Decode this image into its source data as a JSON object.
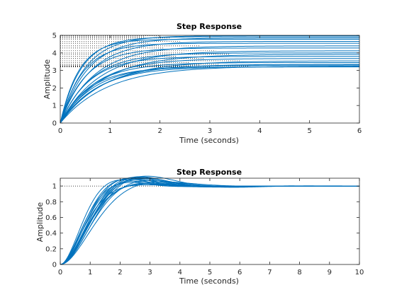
{
  "colors": {
    "line": "#0072BD",
    "axes": "#262626",
    "reference": "#000000",
    "background": "#ffffff"
  },
  "chart_data": [
    {
      "type": "line",
      "title": "Step Response",
      "xlabel": "Time (seconds)",
      "ylabel": "Amplitude",
      "xlim": [
        0,
        6
      ],
      "ylim": [
        0,
        5
      ],
      "xticks": [
        "0",
        "1",
        "2",
        "3",
        "4",
        "5",
        "6"
      ],
      "yticks": [
        "0",
        "1",
        "2",
        "3",
        "4",
        "5"
      ],
      "grid": false,
      "legend": "none",
      "response": "first-order",
      "series": [
        {
          "gain": 4.98,
          "tau": 0.5
        },
        {
          "gain": 4.92,
          "tau": 0.42
        },
        {
          "gain": 4.85,
          "tau": 0.55
        },
        {
          "gain": 4.78,
          "tau": 0.38
        },
        {
          "gain": 4.66,
          "tau": 0.6
        },
        {
          "gain": 4.55,
          "tau": 0.45
        },
        {
          "gain": 4.4,
          "tau": 0.7
        },
        {
          "gain": 4.28,
          "tau": 0.52
        },
        {
          "gain": 4.12,
          "tau": 0.78
        },
        {
          "gain": 4.0,
          "tau": 0.62
        },
        {
          "gain": 3.92,
          "tau": 0.85
        },
        {
          "gain": 3.8,
          "tau": 0.58
        },
        {
          "gain": 3.68,
          "tau": 0.72
        },
        {
          "gain": 3.55,
          "tau": 0.9
        },
        {
          "gain": 3.45,
          "tau": 0.65
        },
        {
          "gain": 3.35,
          "tau": 0.8
        },
        {
          "gain": 3.3,
          "tau": 0.7
        },
        {
          "gain": 3.25,
          "tau": 0.95
        },
        {
          "gain": 3.22,
          "tau": 0.75
        },
        {
          "gain": 3.2,
          "tau": 0.6
        }
      ]
    },
    {
      "type": "line",
      "title": "Step Response",
      "xlabel": "Time (seconds)",
      "ylabel": "Amplitude",
      "xlim": [
        0,
        10
      ],
      "ylim": [
        0,
        1.1
      ],
      "xticks": [
        "0",
        "1",
        "2",
        "3",
        "4",
        "5",
        "6",
        "7",
        "8",
        "9",
        "10"
      ],
      "yticks": [
        "0",
        "0.2",
        "0.4",
        "0.6",
        "0.8",
        "1"
      ],
      "grid": false,
      "legend": "none",
      "response": "second-order",
      "reference_level": 1,
      "series": [
        {
          "zeta": 0.58,
          "wn": 1.4
        },
        {
          "zeta": 0.62,
          "wn": 1.55
        },
        {
          "zeta": 0.55,
          "wn": 1.3
        },
        {
          "zeta": 0.66,
          "wn": 1.7
        },
        {
          "zeta": 0.6,
          "wn": 1.45
        },
        {
          "zeta": 0.7,
          "wn": 1.85
        },
        {
          "zeta": 0.57,
          "wn": 1.5
        },
        {
          "zeta": 0.64,
          "wn": 1.35
        },
        {
          "zeta": 0.59,
          "wn": 1.65
        },
        {
          "zeta": 0.75,
          "wn": 1.6
        },
        {
          "zeta": 0.68,
          "wn": 1.25
        },
        {
          "zeta": 0.61,
          "wn": 1.75
        },
        {
          "zeta": 0.56,
          "wn": 1.42
        },
        {
          "zeta": 0.72,
          "wn": 1.52
        },
        {
          "zeta": 0.63,
          "wn": 1.95
        },
        {
          "zeta": 0.8,
          "wn": 1.8
        }
      ]
    }
  ]
}
